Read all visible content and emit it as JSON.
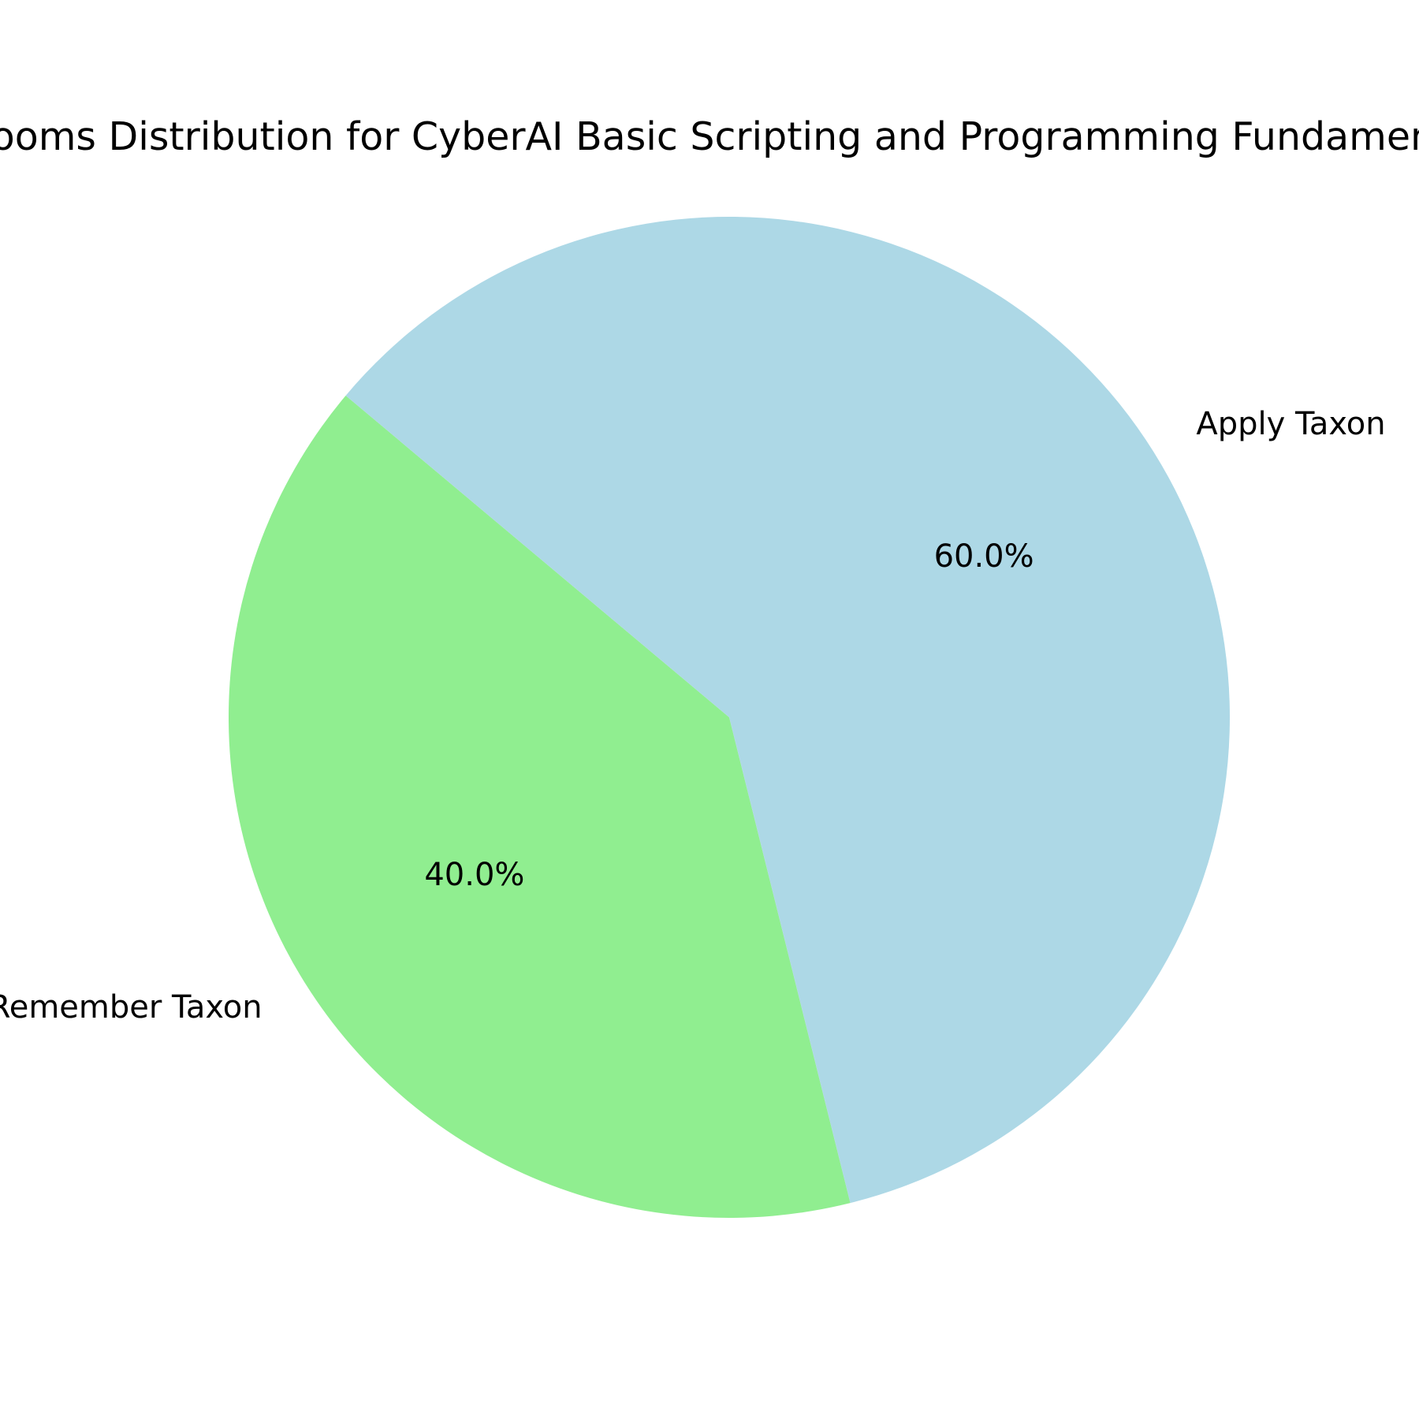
{
  "chart_data": {
    "type": "pie",
    "title": "Blooms Distribution for CyberAI Basic Scripting and Programming Fundamentals",
    "slices": [
      {
        "label": "Remember Taxon",
        "value": 40.0,
        "pct_label": "40.0%",
        "color": "#90ee90"
      },
      {
        "label": "Apply Taxon",
        "value": 60.0,
        "pct_label": "60.0%",
        "color": "#add8e6"
      }
    ],
    "start_angle_deg": 140,
    "direction": "counterclockwise",
    "legend": "none"
  }
}
